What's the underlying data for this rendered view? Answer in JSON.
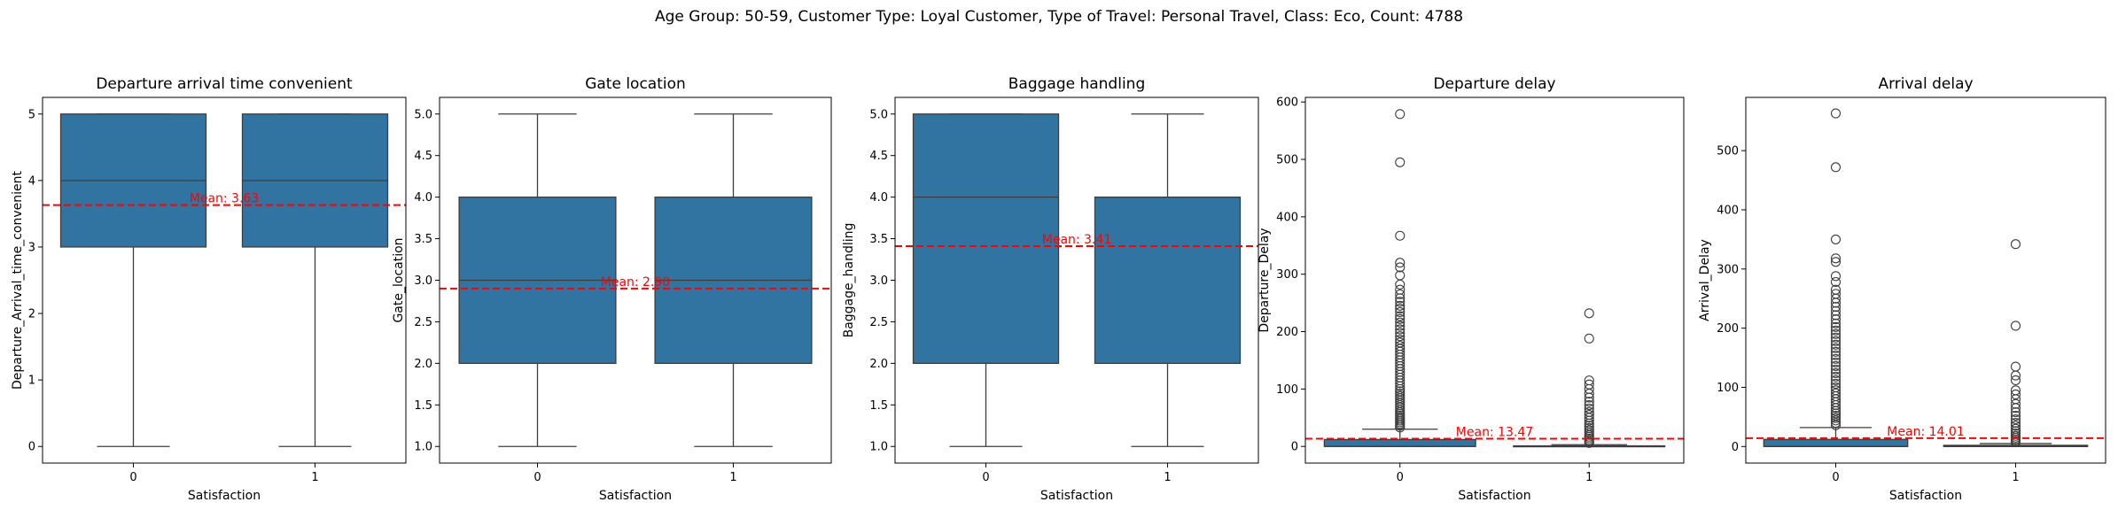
{
  "figure": {
    "suptitle": "Age Group: 50-59, Customer Type: Loyal Customer, Type of Travel: Personal Travel, Class: Eco, Count: 4788",
    "box_color": "#3274a1",
    "mean_line_color": "#ff0000"
  },
  "chart_data": [
    {
      "type": "box",
      "title": "Departure arrival time convenient",
      "xlabel": "Satisfaction",
      "ylabel": "Departure_Arrival_time_convenient",
      "categories": [
        "0",
        "1"
      ],
      "ylim": [
        -0.25,
        5.25
      ],
      "yticks": [
        0,
        1,
        2,
        3,
        4,
        5
      ],
      "ytick_labels": [
        "0",
        "1",
        "2",
        "3",
        "4",
        "5"
      ],
      "boxes": [
        {
          "category": "0",
          "whisker_low": 0,
          "q1": 3,
          "median": 4,
          "q3": 5,
          "whisker_high": 5,
          "outliers": []
        },
        {
          "category": "1",
          "whisker_low": 0,
          "q1": 3,
          "median": 4,
          "q3": 5,
          "whisker_high": 5,
          "outliers": []
        }
      ],
      "mean": 3.63,
      "mean_label": "Mean: 3.63"
    },
    {
      "type": "box",
      "title": "Gate location",
      "xlabel": "Satisfaction",
      "ylabel": "Gate_location",
      "categories": [
        "0",
        "1"
      ],
      "ylim": [
        0.8,
        5.2
      ],
      "yticks": [
        1.0,
        1.5,
        2.0,
        2.5,
        3.0,
        3.5,
        4.0,
        4.5,
        5.0
      ],
      "ytick_labels": [
        "1.0",
        "1.5",
        "2.0",
        "2.5",
        "3.0",
        "3.5",
        "4.0",
        "4.5",
        "5.0"
      ],
      "boxes": [
        {
          "category": "0",
          "whisker_low": 1,
          "q1": 2,
          "median": 3,
          "q3": 4,
          "whisker_high": 5,
          "outliers": []
        },
        {
          "category": "1",
          "whisker_low": 1,
          "q1": 2,
          "median": 3,
          "q3": 4,
          "whisker_high": 5,
          "outliers": []
        }
      ],
      "mean": 2.9,
      "mean_label": "Mean: 2.90"
    },
    {
      "type": "box",
      "title": "Baggage handling",
      "xlabel": "Satisfaction",
      "ylabel": "Baggage_handling",
      "categories": [
        "0",
        "1"
      ],
      "ylim": [
        0.8,
        5.2
      ],
      "yticks": [
        1.0,
        1.5,
        2.0,
        2.5,
        3.0,
        3.5,
        4.0,
        4.5,
        5.0
      ],
      "ytick_labels": [
        "1.0",
        "1.5",
        "2.0",
        "2.5",
        "3.0",
        "3.5",
        "4.0",
        "4.5",
        "5.0"
      ],
      "boxes": [
        {
          "category": "0",
          "whisker_low": 1,
          "q1": 2,
          "median": 4,
          "q3": 5,
          "whisker_high": 5,
          "outliers": []
        },
        {
          "category": "1",
          "whisker_low": 1,
          "q1": 2,
          "median": 4,
          "q3": 4,
          "whisker_high": 5,
          "outliers": []
        }
      ],
      "mean": 3.41,
      "mean_label": "Mean: 3.41"
    },
    {
      "type": "box",
      "title": "Departure delay",
      "xlabel": "Satisfaction",
      "ylabel": "Departure_Delay",
      "categories": [
        "0",
        "1"
      ],
      "ylim": [
        -29,
        608
      ],
      "yticks": [
        0,
        100,
        200,
        300,
        400,
        500,
        600
      ],
      "ytick_labels": [
        "0",
        "100",
        "200",
        "300",
        "400",
        "500",
        "600"
      ],
      "boxes": [
        {
          "category": "0",
          "whisker_low": 0,
          "q1": 0,
          "median": 0,
          "q3": 12,
          "whisker_high": 30,
          "outliers": [
            579,
            495,
            367,
            320,
            312,
            298,
            282,
            273,
            265,
            258,
            252,
            245,
            240,
            234,
            227,
            222,
            216,
            210,
            204,
            198,
            192,
            186,
            181,
            175,
            170,
            165,
            160,
            155,
            150,
            145,
            140,
            135,
            130,
            125,
            120,
            115,
            110,
            105,
            100,
            96,
            92,
            88,
            84,
            80,
            76,
            72,
            68,
            64,
            60,
            57,
            54,
            51,
            48,
            45,
            42,
            39,
            36,
            33
          ]
        },
        {
          "category": "1",
          "whisker_low": 0,
          "q1": 0,
          "median": 0,
          "q3": 1,
          "whisker_high": 3,
          "outliers": [
            232,
            188,
            115,
            108,
            100,
            92,
            85,
            78,
            72,
            66,
            60,
            55,
            50,
            45,
            40,
            36,
            32,
            28,
            24,
            20,
            17,
            14,
            11,
            8,
            6
          ]
        }
      ],
      "mean": 13.47,
      "mean_label": "Mean: 13.47"
    },
    {
      "type": "box",
      "title": "Arrival delay",
      "xlabel": "Satisfaction",
      "ylabel": "Arrival_Delay",
      "categories": [
        "0",
        "1"
      ],
      "ylim": [
        -28,
        590
      ],
      "yticks": [
        0,
        100,
        200,
        300,
        400,
        500
      ],
      "ytick_labels": [
        "0",
        "100",
        "200",
        "300",
        "400",
        "500"
      ],
      "boxes": [
        {
          "category": "0",
          "whisker_low": 0,
          "q1": 0,
          "median": 0,
          "q3": 12,
          "whisker_high": 32,
          "outliers": [
            563,
            472,
            350,
            318,
            312,
            288,
            278,
            265,
            258,
            250,
            243,
            236,
            229,
            222,
            215,
            208,
            202,
            196,
            190,
            184,
            178,
            172,
            166,
            160,
            154,
            148,
            142,
            136,
            130,
            124,
            118,
            112,
            106,
            100,
            95,
            90,
            85,
            80,
            75,
            70,
            65,
            60,
            56,
            52,
            48,
            44,
            40,
            36
          ]
        },
        {
          "category": "1",
          "whisker_low": 0,
          "q1": 0,
          "median": 0,
          "q3": 2,
          "whisker_high": 5,
          "outliers": [
            342,
            204,
            135,
            120,
            112,
            95,
            88,
            80,
            72,
            65,
            58,
            52,
            46,
            40,
            35,
            30,
            26,
            22,
            18,
            15,
            12,
            9,
            7
          ]
        }
      ],
      "mean": 14.01,
      "mean_label": "Mean: 14.01"
    }
  ]
}
